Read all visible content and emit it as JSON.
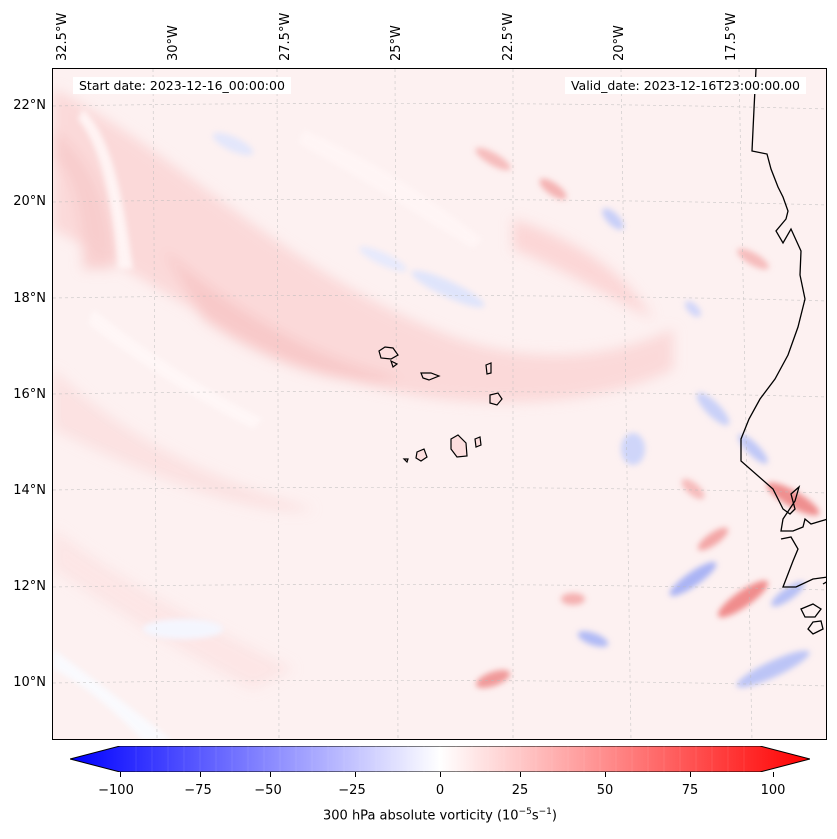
{
  "map": {
    "start_date": "Start date: 2023-12-16_00:00:00",
    "valid_date": "Valid_date: 2023-12-16T23:00:00.00",
    "field": "300 hPa absolute vorticity",
    "colormap": "bwr",
    "lon_labels": [
      "32.5°W",
      "30°W",
      "27.5°W",
      "25°W",
      "22.5°W",
      "20°W",
      "17.5°W"
    ],
    "lat_labels": [
      "22°N",
      "20°N",
      "18°N",
      "16°N",
      "14°N",
      "12°N",
      "10°N"
    ],
    "coastline_color": "#000000",
    "gridline_color": "#bbbbbb"
  },
  "colorbar": {
    "ticks": [
      "−100",
      "−75",
      "−50",
      "−25",
      "0",
      "25",
      "50",
      "75",
      "100"
    ],
    "title_prefix": "300 hPa absolute vorticity (10",
    "title_exp1": "−5",
    "title_mid": "s",
    "title_exp2": "−1",
    "title_suffix": ")",
    "min": -100,
    "max": 100,
    "colors": {
      "low": "#0000ff",
      "mid": "#ffffff",
      "high": "#ff0000"
    }
  }
}
